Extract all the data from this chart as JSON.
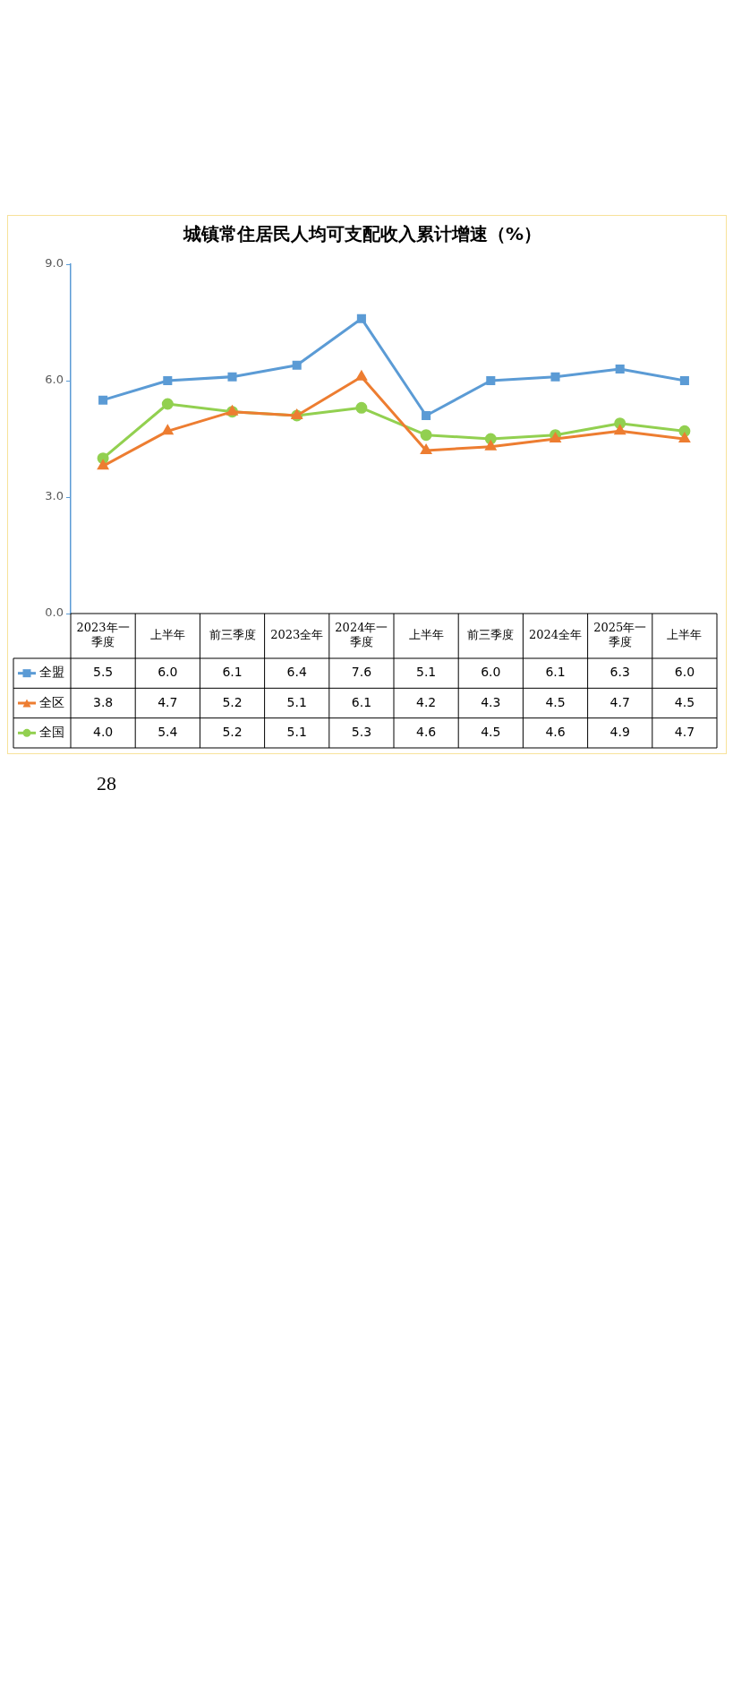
{
  "chart_data": {
    "type": "line",
    "title": "城镇常住居民人均可支配收入累计增速（%）",
    "categories": [
      "2023年一季度",
      "上半年",
      "前三季度",
      "2023全年",
      "2024年一季度",
      "上半年",
      "前三季度",
      "2024全年",
      "2025年一季度",
      "上半年"
    ],
    "series": [
      {
        "name": "全盟",
        "color": "#5b9bd5",
        "marker": "square",
        "values": [
          5.5,
          6.0,
          6.1,
          6.4,
          7.6,
          5.1,
          6.0,
          6.1,
          6.3,
          6.0
        ],
        "value_labels": [
          "5.5",
          "6.0",
          "6.1",
          "6.4",
          "7.6",
          "5.1",
          "6.0",
          "6.1",
          "6.3",
          "6.0"
        ]
      },
      {
        "name": "全区",
        "color": "#ed7d31",
        "marker": "triangle",
        "values": [
          3.8,
          4.7,
          5.2,
          5.1,
          6.1,
          4.2,
          4.3,
          4.5,
          4.7,
          4.5
        ],
        "value_labels": [
          "3.8",
          "4.7",
          "5.2",
          "5.1",
          "6.1",
          "4.2",
          "4.3",
          "4.5",
          "4.7",
          "4.5"
        ]
      },
      {
        "name": "全国",
        "color": "#92d050",
        "marker": "circle",
        "values": [
          4.0,
          5.4,
          5.2,
          5.1,
          5.3,
          4.6,
          4.5,
          4.6,
          4.9,
          4.7
        ],
        "value_labels": [
          "4.0",
          "5.4",
          "5.2",
          "5.1",
          "5.3",
          "4.6",
          "4.5",
          "4.6",
          "4.9",
          "4.7"
        ]
      }
    ],
    "ylim": [
      0,
      9
    ],
    "yticks": [
      {
        "value": 0,
        "label": "0.0"
      },
      {
        "value": 3,
        "label": "3.0"
      },
      {
        "value": 6,
        "label": "6.0"
      },
      {
        "value": 9,
        "label": "9.0"
      }
    ],
    "grid": false,
    "legend": "bottom",
    "annotations": [
      "28"
    ]
  }
}
